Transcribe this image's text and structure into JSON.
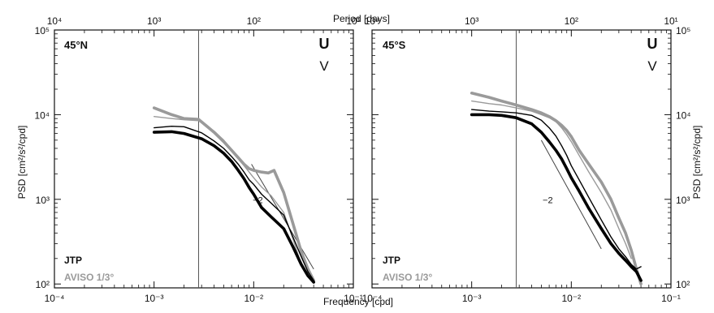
{
  "figure": {
    "top_axis_label": "Period [days]",
    "bottom_axis_label": "Frequency [cpd]",
    "left_axis_label": "PSD [cm²/s²/cpd]",
    "right_axis_label": "PSD [cm²/s²/cpd]",
    "u_label": "U",
    "v_label": "V",
    "jtp_label": "JTP",
    "aviso_label": "AVISO 1/3°",
    "slope_label": "−2",
    "colors": {
      "jtp": "#000000",
      "aviso": "#9a9a9a",
      "axes": "#111111",
      "ref": "#444444"
    }
  },
  "chart_data": [
    {
      "type": "line",
      "panel_label": "45°N",
      "x_scale": "log",
      "y_scale": "log",
      "xlim": [
        0.0001,
        0.1
      ],
      "ylim": [
        90,
        100000
      ],
      "x_ticks": [
        "10⁻⁴",
        "10⁻³",
        "10⁻²",
        "10⁻¹"
      ],
      "x_tick_values": [
        0.0001,
        0.001,
        0.01,
        0.1
      ],
      "top_ticks": [
        "10⁴",
        "10³",
        "10²",
        "10¹"
      ],
      "top_tick_periods": [
        10000,
        1000,
        100,
        10
      ],
      "y_ticks": [
        "10²",
        "10³",
        "10⁴",
        "10⁵"
      ],
      "y_tick_values": [
        100,
        1000,
        10000,
        100000
      ],
      "vline_frequency": 0.0028,
      "slope_reference": {
        "slope": -2,
        "x": [
          0.0095,
          0.04
        ],
        "y": [
          2600,
          150
        ]
      },
      "slope_label_at": [
        0.011,
        900
      ],
      "series": [
        {
          "name": "JTP",
          "component": "U",
          "width": 3.6,
          "color": "#000000",
          "x": [
            0.001,
            0.0015,
            0.002,
            0.003,
            0.004,
            0.005,
            0.006,
            0.007,
            0.008,
            0.009,
            0.01,
            0.012,
            0.015,
            0.02,
            0.025,
            0.03,
            0.035,
            0.04
          ],
          "y": [
            6200,
            6300,
            6000,
            5200,
            4300,
            3500,
            2800,
            2200,
            1750,
            1380,
            1150,
            800,
            620,
            450,
            270,
            170,
            125,
            105
          ]
        },
        {
          "name": "JTP",
          "component": "V",
          "width": 1.4,
          "color": "#000000",
          "x": [
            0.001,
            0.0015,
            0.002,
            0.003,
            0.004,
            0.005,
            0.006,
            0.007,
            0.008,
            0.009,
            0.01,
            0.012,
            0.015,
            0.02,
            0.025,
            0.03,
            0.035,
            0.04
          ],
          "y": [
            7000,
            7300,
            7200,
            6100,
            4900,
            4000,
            3200,
            2600,
            2100,
            1700,
            1500,
            1150,
            900,
            650,
            350,
            210,
            140,
            110
          ]
        },
        {
          "name": "AVISO 1/3°",
          "component": "U",
          "width": 3.6,
          "color": "#9a9a9a",
          "x": [
            0.001,
            0.0015,
            0.002,
            0.0028,
            0.004,
            0.005,
            0.006,
            0.007,
            0.008,
            0.009,
            0.01,
            0.012,
            0.014,
            0.016,
            0.02,
            0.025,
            0.03,
            0.035,
            0.04
          ],
          "y": [
            12000,
            10000,
            9000,
            8800,
            6200,
            4800,
            3800,
            3100,
            2600,
            2300,
            2200,
            2100,
            2050,
            2200,
            1200,
            500,
            240,
            150,
            110
          ]
        },
        {
          "name": "AVISO 1/3°",
          "component": "V",
          "width": 1.4,
          "color": "#9a9a9a",
          "x": [
            0.001,
            0.0015,
            0.002,
            0.0028,
            0.004,
            0.005,
            0.006,
            0.007,
            0.008,
            0.009,
            0.01,
            0.012,
            0.015,
            0.02,
            0.025,
            0.03
          ],
          "y": [
            9500,
            9000,
            8700,
            8500,
            6400,
            5000,
            3900,
            3100,
            2500,
            2100,
            1800,
            1400,
            1100,
            700,
            330,
            170
          ]
        }
      ]
    },
    {
      "type": "line",
      "panel_label": "45°S",
      "x_scale": "log",
      "y_scale": "log",
      "xlim": [
        0.0001,
        0.1
      ],
      "ylim": [
        90,
        100000
      ],
      "x_ticks": [
        "10⁻⁴",
        "10⁻³",
        "10⁻²",
        "10⁻¹"
      ],
      "x_tick_values": [
        0.0001,
        0.001,
        0.01,
        0.1
      ],
      "top_ticks": [
        "10⁴",
        "10³",
        "10²",
        "10¹"
      ],
      "top_tick_periods": [
        10000,
        1000,
        100,
        10
      ],
      "y_ticks": [
        "10²",
        "10³",
        "10⁴",
        "10⁵"
      ],
      "y_tick_values": [
        100,
        1000,
        10000,
        100000
      ],
      "vline_frequency": 0.0028,
      "slope_reference": {
        "slope": -2,
        "x": [
          0.005,
          0.02
        ],
        "y": [
          5000,
          260
        ]
      },
      "slope_label_at": [
        0.0058,
        900
      ],
      "series": [
        {
          "name": "JTP",
          "component": "U",
          "width": 3.6,
          "color": "#000000",
          "x": [
            0.001,
            0.0015,
            0.002,
            0.0028,
            0.004,
            0.005,
            0.006,
            0.007,
            0.008,
            0.009,
            0.01,
            0.012,
            0.015,
            0.02,
            0.025,
            0.03,
            0.035,
            0.04,
            0.045,
            0.05
          ],
          "y": [
            10000,
            10000,
            9800,
            9200,
            7800,
            6200,
            4800,
            3800,
            3000,
            2300,
            1800,
            1250,
            780,
            450,
            300,
            230,
            190,
            160,
            140,
            110
          ]
        },
        {
          "name": "JTP",
          "component": "V",
          "width": 1.4,
          "color": "#000000",
          "x": [
            0.001,
            0.0015,
            0.002,
            0.0028,
            0.004,
            0.005,
            0.006,
            0.007,
            0.008,
            0.009,
            0.01,
            0.012,
            0.015,
            0.02,
            0.025,
            0.03,
            0.035,
            0.04,
            0.045,
            0.05
          ],
          "y": [
            11500,
            11000,
            10800,
            10500,
            9800,
            8600,
            7000,
            5600,
            4300,
            3300,
            2500,
            1700,
            1050,
            570,
            360,
            260,
            210,
            170,
            150,
            160
          ]
        },
        {
          "name": "AVISO 1/3°",
          "component": "U",
          "width": 3.6,
          "color": "#9a9a9a",
          "x": [
            0.001,
            0.0015,
            0.002,
            0.0028,
            0.004,
            0.005,
            0.006,
            0.007,
            0.008,
            0.009,
            0.01,
            0.012,
            0.015,
            0.02,
            0.025,
            0.03,
            0.035,
            0.04,
            0.045,
            0.05
          ],
          "y": [
            18000,
            16000,
            14500,
            13000,
            11500,
            10500,
            9500,
            8500,
            7500,
            6500,
            5500,
            3800,
            2600,
            1600,
            1000,
            600,
            400,
            250,
            150,
            100
          ]
        },
        {
          "name": "AVISO 1/3°",
          "component": "V",
          "width": 1.4,
          "color": "#9a9a9a",
          "x": [
            0.001,
            0.0015,
            0.002,
            0.0028,
            0.004,
            0.005,
            0.006,
            0.007,
            0.008,
            0.009,
            0.01,
            0.012,
            0.015,
            0.02,
            0.025,
            0.03,
            0.035,
            0.04
          ],
          "y": [
            14500,
            13500,
            13000,
            12000,
            11000,
            10000,
            9200,
            8300,
            7000,
            5800,
            4800,
            3300,
            2100,
            1200,
            750,
            450,
            300,
            200
          ]
        }
      ]
    }
  ]
}
